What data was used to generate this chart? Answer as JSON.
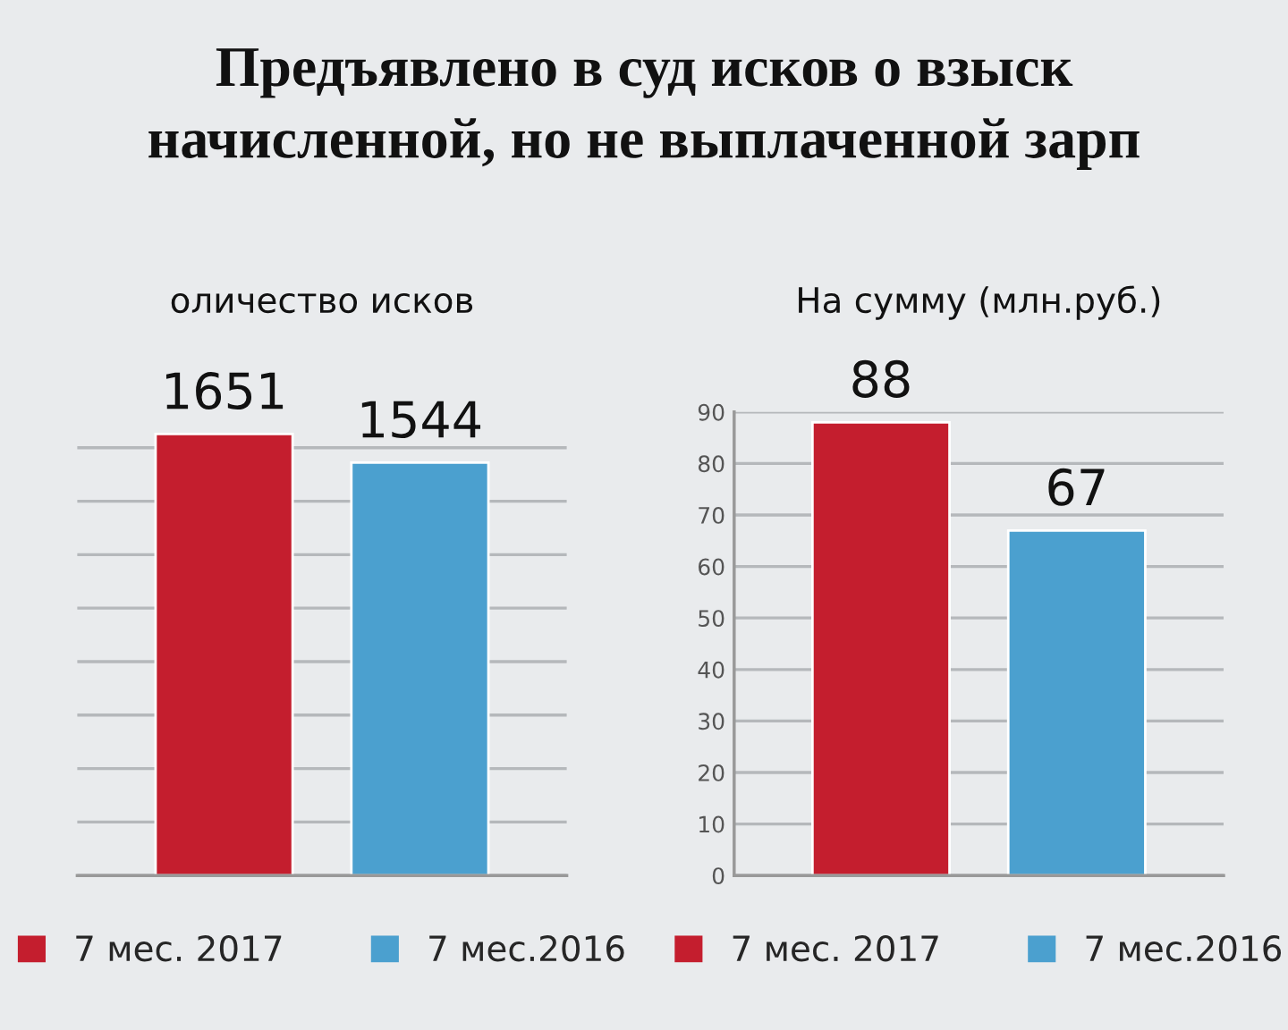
{
  "chart_data": [
    {
      "type": "other",
      "title": "Предъявлено в суд исков о взыск\nначисленной, но не выплаченной зарп"
    },
    {
      "type": "bar",
      "title": "оличество исков",
      "categories": [
        null
      ],
      "series": [
        {
          "name": "7 мес. 2017",
          "color": "#c41e2e",
          "values": [
            1651
          ]
        },
        {
          "name": "7 мес.2016",
          "color": "#4ba0cf",
          "values": [
            1544
          ]
        }
      ],
      "data_labels": true,
      "grid": "y",
      "tick_labels": false,
      "legend": "bottom"
    },
    {
      "type": "bar",
      "title": "На сумму (млн.руб.)",
      "categories": [
        null
      ],
      "series": [
        {
          "name": "7 мес. 2017",
          "color": "#c41e2e",
          "values": [
            88
          ]
        },
        {
          "name": "7 мес.2016",
          "color": "#4ba0cf",
          "values": [
            67
          ]
        }
      ],
      "ylim": [
        0,
        90
      ],
      "yticks": [
        0,
        10,
        20,
        30,
        40,
        50,
        60,
        70,
        80,
        90
      ],
      "data_labels": true,
      "grid": "y",
      "tick_labels": "y",
      "legend": "bottom"
    }
  ]
}
